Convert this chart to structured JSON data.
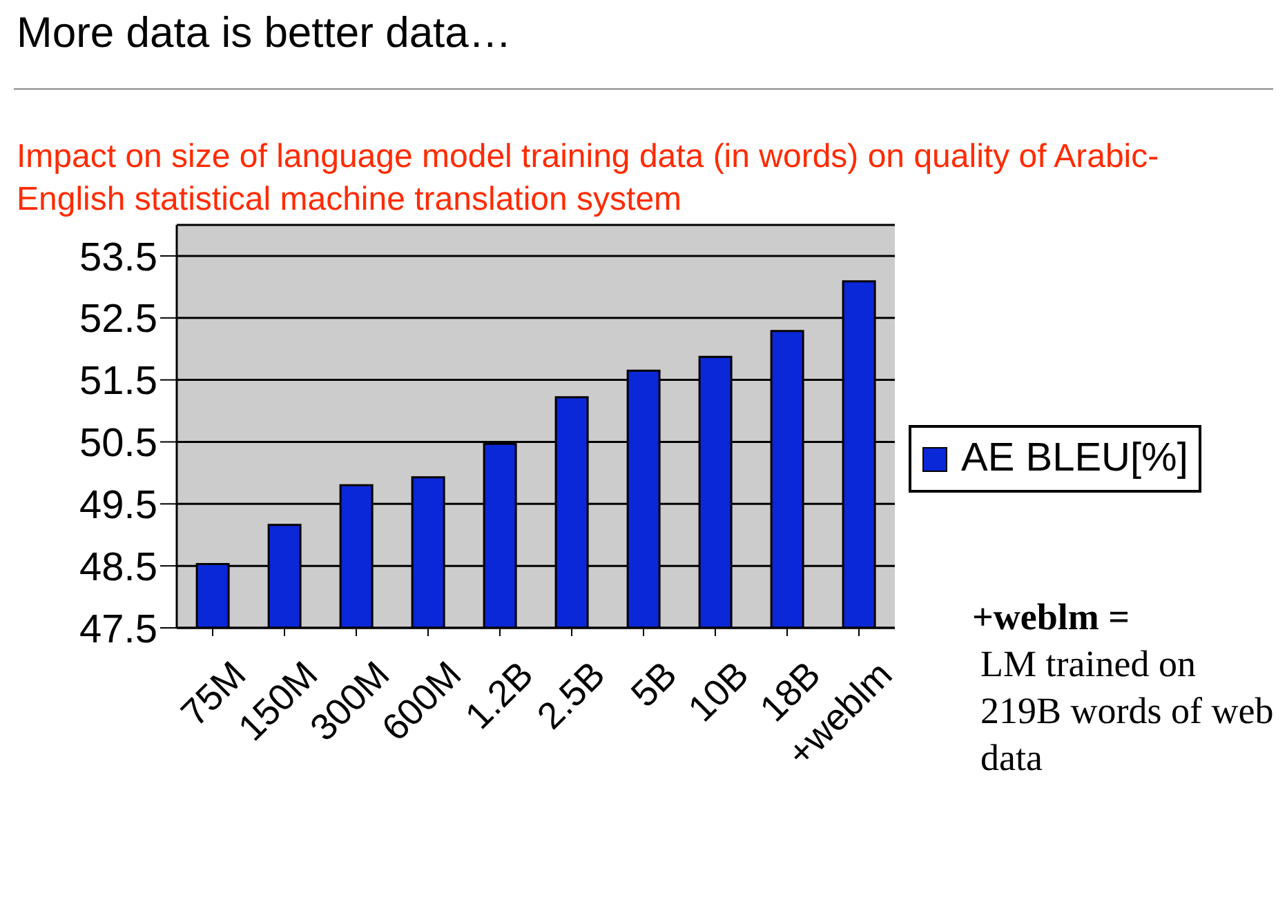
{
  "chart_data": {
    "type": "bar",
    "title": "More data is better data…",
    "subtitle": "Impact on size of language model training data (in words) on quality of Arabic-English statistical machine translation system",
    "categories": [
      "75M",
      "150M",
      "300M",
      "600M",
      "1.2B",
      "2.5B",
      "5B",
      "10B",
      "18B",
      "+weblm"
    ],
    "series": [
      {
        "name": "AE BLEU[%]",
        "color": "#0a28d8",
        "values": [
          48.53,
          49.16,
          49.8,
          49.93,
          50.47,
          51.22,
          51.65,
          51.87,
          52.29,
          53.09
        ]
      }
    ],
    "ylim": [
      47.5,
      54
    ],
    "yticks": [
      47.5,
      48.5,
      49.5,
      50.5,
      51.5,
      52.5,
      53.5
    ],
    "grid": "y",
    "legend": "right",
    "annotations": [
      "+weblm =",
      "LM trained on 219B words of web data"
    ]
  }
}
